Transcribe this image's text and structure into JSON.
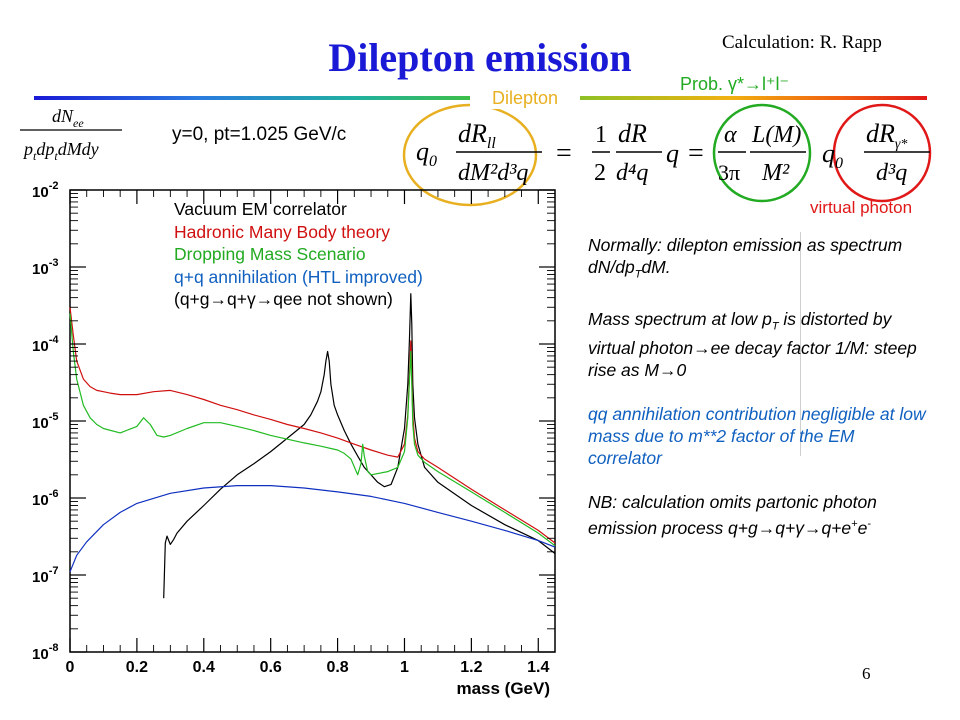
{
  "slide": {
    "title": "Dilepton emission",
    "credit": "Calculation: R. Rapp",
    "page_number": "6",
    "subtitle": "y=0, pt=1.025 GeV/c",
    "annotations": {
      "prob": "Prob. γ*→l⁺l⁻",
      "dilepton": "Dilepton",
      "virtual_photon": "virtual photon"
    },
    "formula": {
      "lhs": "dN_ee / (p_t dp_t dM dy)",
      "lhs_num": "dN",
      "lhs_num_sub": "ee",
      "lhs_den": "p",
      "lhs_den_rest": "dp",
      "lhs_den_rest2": "dMdy",
      "sub_t": "t",
      "q0": "q",
      "q0_sub": "0",
      "dR_ll": "dR",
      "ll_sub": "ll",
      "dM2d3q": "dM²d³q",
      "half": "1",
      "two": "2",
      "dR": "dR",
      "d4q": "d⁴q",
      "q": "q",
      "alpha": "α",
      "threepi": "3π",
      "L": "L(M)",
      "M2": "M²",
      "dRg": "dR",
      "g_sub": "γ*",
      "d3q": "d³q",
      "eq": "=",
      "comma": ""
    },
    "colors": {
      "title": "#1a1ad6",
      "gold": "#e8b020",
      "green": "#22aa22",
      "red": "#e01818",
      "blue": "#1060c0"
    }
  },
  "legend": {
    "vacuum": "Vacuum EM correlator",
    "hmbt": "Hadronic Many Body theory",
    "dropping": "Dropping Mass Scenario",
    "qq": "q+q annihilation (HTL improved)",
    "note": "(q+g→q+γ→qee not shown)"
  },
  "notes": {
    "p1": "Normally: dilepton emission as spectrum dN/dp_TdM.",
    "p1_a": "Normally: dilepton emission as spectrum dN/dp",
    "p1_sub": "T",
    "p1_b": "dM.",
    "p2_a": "Mass spectrum at low p",
    "p2_sub": "T",
    "p2_b": " is distorted by virtual photon→ee decay factor 1/M: steep rise as M→0",
    "p3": "qq annihilation contribution negligible at low mass due to m**2 factor of the EM correlator",
    "p4_a": "NB: calculation omits partonic photon emission process q+g→q+γ→q+e",
    "p4_sup1": "+",
    "p4_mid": "e",
    "p4_sup2": "-"
  },
  "chart_data": {
    "type": "line",
    "title": "",
    "xlabel": "mass (GeV)",
    "ylabel": "dN_ee/(p_t dp_t dM dy)",
    "xlim": [
      0,
      1.45
    ],
    "ylim": [
      1e-08,
      0.01
    ],
    "yscale": "log",
    "xticks": [
      "0",
      "0.2",
      "0.4",
      "0.6",
      "0.8",
      "1",
      "1.2",
      "1.4"
    ],
    "yticks": [
      {
        "base": "10",
        "exp": "-2"
      },
      {
        "base": "10",
        "exp": "-3"
      },
      {
        "base": "10",
        "exp": "-4"
      },
      {
        "base": "10",
        "exp": "-5"
      },
      {
        "base": "10",
        "exp": "-6"
      },
      {
        "base": "10",
        "exp": "-7"
      },
      {
        "base": "10",
        "exp": "-8"
      }
    ],
    "grid": false,
    "legend_position": "top-left",
    "series": [
      {
        "name": "Vacuum EM correlator",
        "color": "#000000",
        "x": [
          0.28,
          0.285,
          0.29,
          0.3,
          0.31,
          0.32,
          0.35,
          0.4,
          0.45,
          0.5,
          0.55,
          0.6,
          0.65,
          0.7,
          0.72,
          0.74,
          0.75,
          0.76,
          0.765,
          0.77,
          0.775,
          0.78,
          0.79,
          0.8,
          0.82,
          0.84,
          0.86,
          0.88,
          0.9,
          0.92,
          0.94,
          0.96,
          0.98,
          1.0,
          1.01,
          1.015,
          1.019,
          1.022,
          1.025,
          1.03,
          1.04,
          1.06,
          1.1,
          1.2,
          1.3,
          1.4,
          1.45
        ],
        "y": [
          5e-08,
          2.6e-07,
          3.2e-07,
          2.5e-07,
          2.9e-07,
          3.5e-07,
          5e-07,
          8e-07,
          1.3e-06,
          2e-06,
          2.8e-06,
          4e-06,
          6e-06,
          9e-06,
          1.2e-05,
          1.8e-05,
          2.4e-05,
          4e-05,
          6e-05,
          8e-05,
          6e-05,
          3e-05,
          1.6e-05,
          1.2e-05,
          7.5e-06,
          5e-06,
          3.5e-06,
          2.5e-06,
          2e-06,
          1.6e-06,
          1.4e-06,
          1.5e-06,
          2.5e-06,
          8e-06,
          3e-05,
          0.00012,
          0.00045,
          0.00018,
          3e-05,
          1.1e-05,
          5e-06,
          2.5e-06,
          1.6e-06,
          8e-07,
          4.5e-07,
          2.8e-07,
          1.9e-07
        ]
      },
      {
        "name": "Hadronic Many Body theory",
        "color": "#d01010",
        "x": [
          0.0,
          0.01,
          0.02,
          0.04,
          0.06,
          0.08,
          0.1,
          0.12,
          0.15,
          0.2,
          0.25,
          0.3,
          0.35,
          0.4,
          0.45,
          0.5,
          0.55,
          0.6,
          0.65,
          0.7,
          0.75,
          0.8,
          0.85,
          0.9,
          0.95,
          0.98,
          1.0,
          1.01,
          1.015,
          1.019,
          1.022,
          1.025,
          1.03,
          1.04,
          1.06,
          1.1,
          1.2,
          1.3,
          1.4,
          1.45
        ],
        "y": [
          0.0003,
          0.00013,
          6e-05,
          3.5e-05,
          2.8e-05,
          2.5e-05,
          2.4e-05,
          2.3e-05,
          2.2e-05,
          2.2e-05,
          2.4e-05,
          2.5e-05,
          2.2e-05,
          1.9e-05,
          1.6e-05,
          1.4e-05,
          1.2e-05,
          1.05e-05,
          9e-06,
          8e-06,
          7e-06,
          6e-06,
          5e-06,
          4.2e-06,
          3.6e-06,
          3.4e-06,
          5e-06,
          1.2e-05,
          4e-05,
          0.00011,
          4e-05,
          1.2e-05,
          6e-06,
          4e-06,
          3.2e-06,
          2.5e-06,
          1.3e-06,
          7e-07,
          3.8e-07,
          2.6e-07
        ]
      },
      {
        "name": "Dropping Mass Scenario",
        "color": "#22bb22",
        "x": [
          0.0,
          0.01,
          0.02,
          0.04,
          0.06,
          0.08,
          0.1,
          0.15,
          0.2,
          0.22,
          0.24,
          0.26,
          0.28,
          0.3,
          0.35,
          0.4,
          0.45,
          0.5,
          0.55,
          0.6,
          0.65,
          0.7,
          0.75,
          0.78,
          0.8,
          0.82,
          0.84,
          0.86,
          0.87,
          0.875,
          0.88,
          0.89,
          0.9,
          0.95,
          0.98,
          1.0,
          1.01,
          1.015,
          1.019,
          1.022,
          1.025,
          1.03,
          1.04,
          1.06,
          1.1,
          1.2,
          1.3,
          1.4,
          1.45
        ],
        "y": [
          0.00025,
          8e-05,
          3.5e-05,
          1.6e-05,
          1.1e-05,
          9e-06,
          8e-06,
          7e-06,
          8.5e-06,
          1.1e-05,
          9e-06,
          6.5e-06,
          6.2e-06,
          6.5e-06,
          8e-06,
          9.5e-06,
          9.5e-06,
          8.5e-06,
          7.5e-06,
          6.5e-06,
          5.8e-06,
          5.2e-06,
          4.7e-06,
          4.4e-06,
          4.2e-06,
          3.8e-06,
          3.2e-06,
          2e-06,
          2.8e-06,
          5e-06,
          3.5e-06,
          2.2e-06,
          2e-06,
          2.2e-06,
          2.5e-06,
          4e-06,
          1.1e-05,
          3.5e-05,
          8e-05,
          3e-05,
          9e-06,
          5e-06,
          3.6e-06,
          2.9e-06,
          2.2e-06,
          1.2e-06,
          6.5e-07,
          3.5e-07,
          2.4e-07
        ]
      },
      {
        "name": "q+q annihilation (HTL improved)",
        "color": "#1030c0",
        "x": [
          0.0,
          0.02,
          0.05,
          0.1,
          0.15,
          0.2,
          0.3,
          0.4,
          0.5,
          0.6,
          0.7,
          0.8,
          0.9,
          1.0,
          1.1,
          1.2,
          1.3,
          1.4,
          1.45
        ],
        "y": [
          1.1e-07,
          1.8e-07,
          2.7e-07,
          4.5e-07,
          6.5e-07,
          8.5e-07,
          1.15e-06,
          1.35e-06,
          1.45e-06,
          1.45e-06,
          1.35e-06,
          1.2e-06,
          1.05e-06,
          8.5e-07,
          6.5e-07,
          5e-07,
          3.8e-07,
          2.8e-07,
          2.3e-07
        ]
      }
    ]
  }
}
